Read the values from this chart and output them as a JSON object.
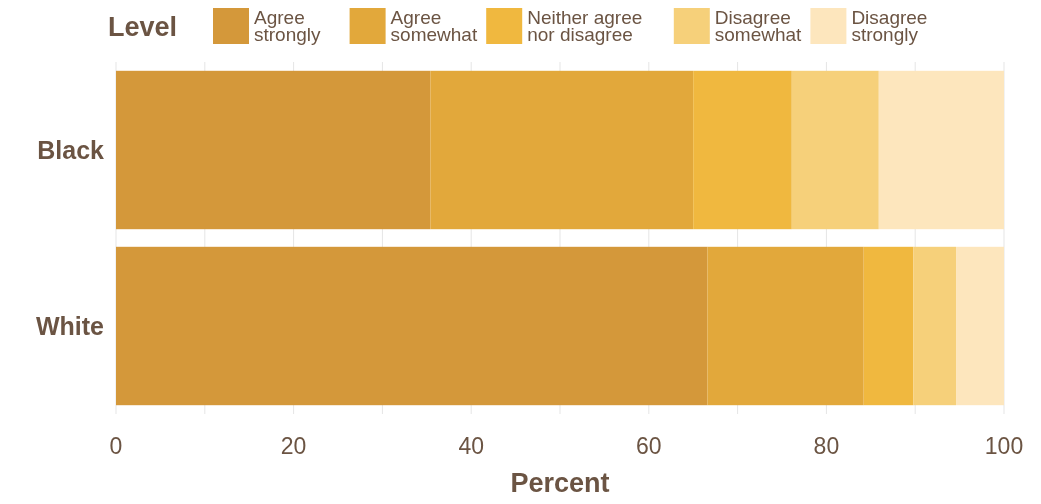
{
  "chart_data": {
    "type": "bar",
    "orientation": "horizontal",
    "stacked": true,
    "legend_title": "Level",
    "legend": "top",
    "xlabel": "Percent",
    "grid": "x",
    "categories": [
      "Black",
      "White"
    ],
    "series": [
      {
        "name": "Agree strongly",
        "color": "#d4983a",
        "values": [
          35.4,
          66.6
        ]
      },
      {
        "name": "Agree somewhat",
        "color": "#e2a83b",
        "values": [
          29.6,
          17.6
        ]
      },
      {
        "name": "Neither agree nor disagree",
        "color": "#f0b83f",
        "values": [
          11.1,
          5.6
        ]
      },
      {
        "name": "Disagree somewhat",
        "color": "#f6d07a",
        "values": [
          9.8,
          4.8
        ]
      },
      {
        "name": "Disagree strongly",
        "color": "#fde6bd",
        "values": [
          14.1,
          5.4
        ]
      }
    ],
    "xlim": [
      0,
      100
    ],
    "xticks": [
      0,
      {
        "value": 10,
        "label": null
      },
      20,
      {
        "value": 30,
        "label": null
      },
      40,
      {
        "value": 50,
        "label": null
      },
      60,
      {
        "value": 70,
        "label": null
      },
      80,
      {
        "value": 90,
        "label": null
      },
      100
    ]
  }
}
